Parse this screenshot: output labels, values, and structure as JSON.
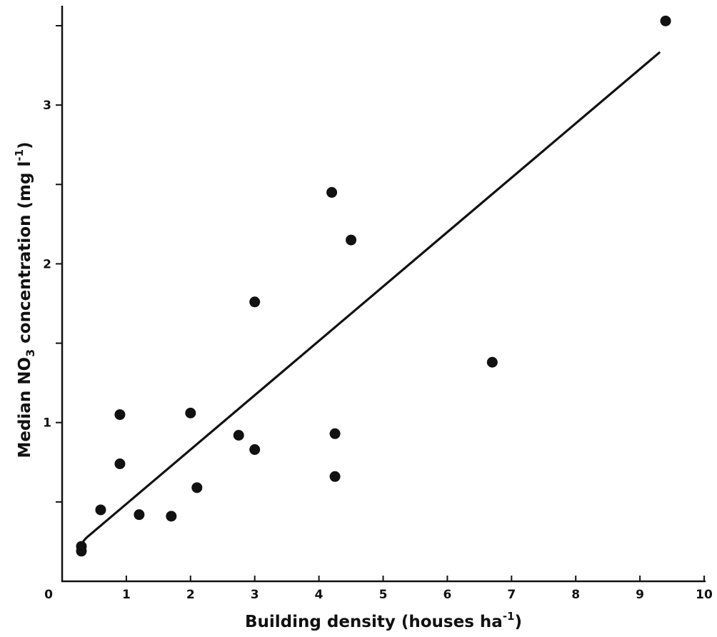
{
  "chart_data": {
    "type": "scatter",
    "xlabel": "Building density (houses ha⁻¹)",
    "ylabel": "Median NO₃ concentration (mg l⁻¹)",
    "xlabel_parts": {
      "main": "Building density (houses ha",
      "sup": "-1",
      "end": ")"
    },
    "ylabel_parts": {
      "pre": "Median NO",
      "sub": "3",
      "mid": " concentration  (mg l",
      "sup": "-1",
      "end": ")"
    },
    "xlim": [
      0,
      10
    ],
    "ylim": [
      0,
      3.5
    ],
    "x_ticks": [
      0,
      1,
      2,
      3,
      4,
      5,
      6,
      7,
      8,
      9,
      10
    ],
    "x_tick_labels": [
      "0",
      "1",
      "2",
      "3",
      "4",
      "5",
      "6",
      "7",
      "8",
      "9",
      "10"
    ],
    "y_ticks": [
      0.5,
      1,
      1.5,
      2,
      2.5,
      3,
      3.5
    ],
    "y_tick_labels": [
      "",
      "1",
      "",
      "2",
      "",
      "3",
      ""
    ],
    "grid": false,
    "series": [
      {
        "points": [
          {
            "x": 0.3,
            "y": 0.22
          },
          {
            "x": 0.3,
            "y": 0.19
          },
          {
            "x": 0.6,
            "y": 0.45
          },
          {
            "x": 0.9,
            "y": 1.05
          },
          {
            "x": 0.9,
            "y": 0.74
          },
          {
            "x": 1.2,
            "y": 0.42
          },
          {
            "x": 1.7,
            "y": 0.41
          },
          {
            "x": 2.0,
            "y": 1.06
          },
          {
            "x": 2.1,
            "y": 0.59
          },
          {
            "x": 2.75,
            "y": 0.92
          },
          {
            "x": 3.0,
            "y": 1.76
          },
          {
            "x": 3.0,
            "y": 0.83
          },
          {
            "x": 4.2,
            "y": 2.45
          },
          {
            "x": 4.25,
            "y": 0.93
          },
          {
            "x": 4.25,
            "y": 0.66
          },
          {
            "x": 4.5,
            "y": 2.15
          },
          {
            "x": 6.7,
            "y": 1.38
          },
          {
            "x": 9.4,
            "y": 3.53
          }
        ]
      }
    ],
    "fit_line": {
      "x": [
        0.3,
        9.3
      ],
      "y": [
        0.26,
        3.33
      ]
    }
  }
}
